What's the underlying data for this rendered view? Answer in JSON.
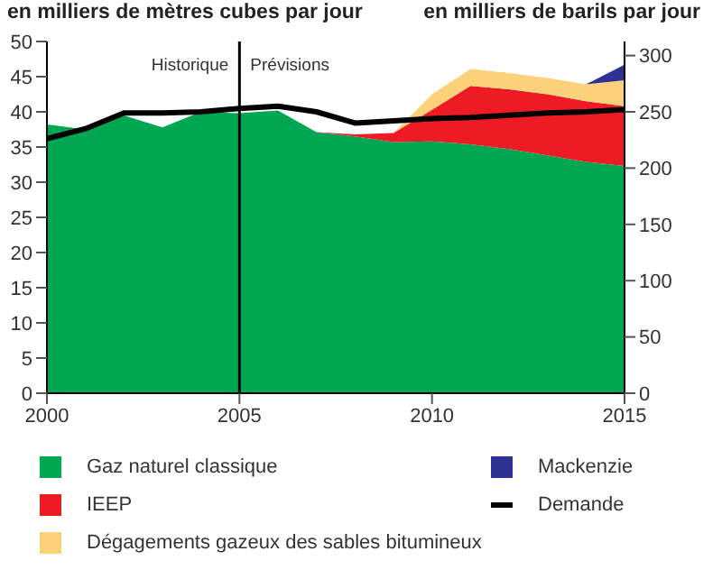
{
  "chart_data": {
    "type": "area",
    "ylabel": "en milliers de mètres cubes par jour",
    "y2label": "en milliers de barils par jour",
    "x": [
      2000,
      2001,
      2002,
      2003,
      2004,
      2005,
      2006,
      2007,
      2008,
      2009,
      2010,
      2011,
      2012,
      2013,
      2014,
      2015
    ],
    "stacked": true,
    "series": [
      {
        "name": "Gaz naturel classique",
        "color": "#00a651",
        "values": [
          38.2,
          37.5,
          39.5,
          37.8,
          40,
          39.8,
          40.2,
          37.1,
          36.5,
          35.7,
          35.8,
          35.4,
          34.7,
          33.8,
          32.9,
          32.3
        ]
      },
      {
        "name": "IEEP",
        "color": "#ed1c24",
        "values": [
          0,
          0,
          0,
          0,
          0,
          0,
          0,
          0,
          0.3,
          1.3,
          4.5,
          8.3,
          8.5,
          8.7,
          8.6,
          8.5
        ]
      },
      {
        "name": "Dégagements gazeux des sables bitumineux",
        "color": "#fdd17a",
        "values": [
          0,
          0,
          0,
          0,
          0,
          0,
          0,
          0,
          0,
          0,
          2.2,
          2.4,
          2.3,
          2.3,
          2.4,
          3.7
        ]
      },
      {
        "name": "Mackenzie",
        "color": "#2e3192",
        "values": [
          0,
          0,
          0,
          0,
          0,
          0,
          0,
          0,
          0,
          0,
          0,
          0,
          0,
          0,
          0,
          2.2
        ]
      },
      {
        "name": "Demande",
        "type": "line",
        "axis": "y2",
        "color": "#000000",
        "values": [
          226,
          235,
          249,
          249,
          250,
          253,
          255,
          250,
          240,
          242,
          244,
          245,
          247,
          249,
          250,
          252
        ]
      }
    ],
    "xlim": [
      2000,
      2015
    ],
    "xticks": [
      2000,
      2005,
      2010,
      2015
    ],
    "ylim": [
      0,
      50
    ],
    "yticks": [
      0,
      5,
      10,
      15,
      20,
      25,
      30,
      35,
      40,
      45,
      50
    ],
    "y2lim": [
      0,
      312.5
    ],
    "y2ticks": [
      0,
      50,
      100,
      150,
      200,
      250,
      300
    ],
    "ref_lines": [
      {
        "axis": "x",
        "value": 2005,
        "color": "#000000"
      }
    ],
    "annotations": [
      "Historique",
      "Prévisions"
    ],
    "legend": "bottom",
    "grid": false
  }
}
